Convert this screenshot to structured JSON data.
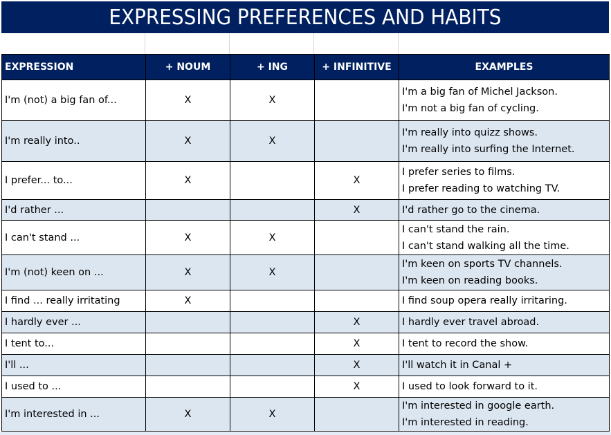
{
  "title": "EXPRESSING PREFERENCES AND HABITS",
  "headers": {
    "expression": "EXPRESSION",
    "noun": "+ NOUM",
    "ing": "+ ING",
    "infinitive": "+ INFINITIVE",
    "examples": "EXAMPLES"
  },
  "colors": {
    "header_bg": "#002060",
    "shaded_row_bg": "#dce6f1"
  },
  "rows": [
    {
      "expression": "I'm (not) a big fan of...",
      "noun": "X",
      "ing": "X",
      "infinitive": "",
      "examples": [
        "I'm a big fan of Michel Jackson.",
        "I'm not a big fan of cycling."
      ]
    },
    {
      "expression": "I'm really into..",
      "noun": "X",
      "ing": "X",
      "infinitive": "",
      "examples": [
        "I'm really into quizz shows.",
        "I'm really into surfing the Internet."
      ]
    },
    {
      "expression": "I prefer... to...",
      "noun": "X",
      "ing": "",
      "infinitive": "X",
      "examples": [
        "I prefer series to films.",
        "I prefer reading to watching TV."
      ]
    },
    {
      "expression": "I'd rather ...",
      "noun": "",
      "ing": "",
      "infinitive": "X",
      "examples": [
        "I'd rather go to the cinema."
      ]
    },
    {
      "expression": "I can't stand ...",
      "noun": "X",
      "ing": "X",
      "infinitive": "",
      "examples": [
        "I can't stand the rain.",
        "I can't stand walking all the time."
      ]
    },
    {
      "expression": "I'm (not) keen on ...",
      "noun": "X",
      "ing": "X",
      "infinitive": "",
      "examples": [
        "I'm keen on sports TV channels.",
        "I'm keen on reading books."
      ]
    },
    {
      "expression": "I find ... really irritating",
      "noun": "X",
      "ing": "",
      "infinitive": "",
      "examples": [
        "I find soup opera really irritaring."
      ]
    },
    {
      "expression": "I hardly ever ...",
      "noun": "",
      "ing": "",
      "infinitive": "X",
      "examples": [
        "I hardly ever travel abroad."
      ]
    },
    {
      "expression": "I tent to...",
      "noun": "",
      "ing": "",
      "infinitive": "X",
      "examples": [
        "I tent to record the show."
      ]
    },
    {
      "expression": "I'll ...",
      "noun": "",
      "ing": "",
      "infinitive": "X",
      "examples": [
        "I'll watch it in Canal +"
      ]
    },
    {
      "expression": "I used to ...",
      "noun": "",
      "ing": "",
      "infinitive": "X",
      "examples": [
        "I used to look forward to it."
      ]
    },
    {
      "expression": "I'm interested in ...",
      "noun": "X",
      "ing": "X",
      "infinitive": "",
      "examples": [
        "I'm interested in google earth.",
        "I'm interested in reading."
      ]
    }
  ]
}
